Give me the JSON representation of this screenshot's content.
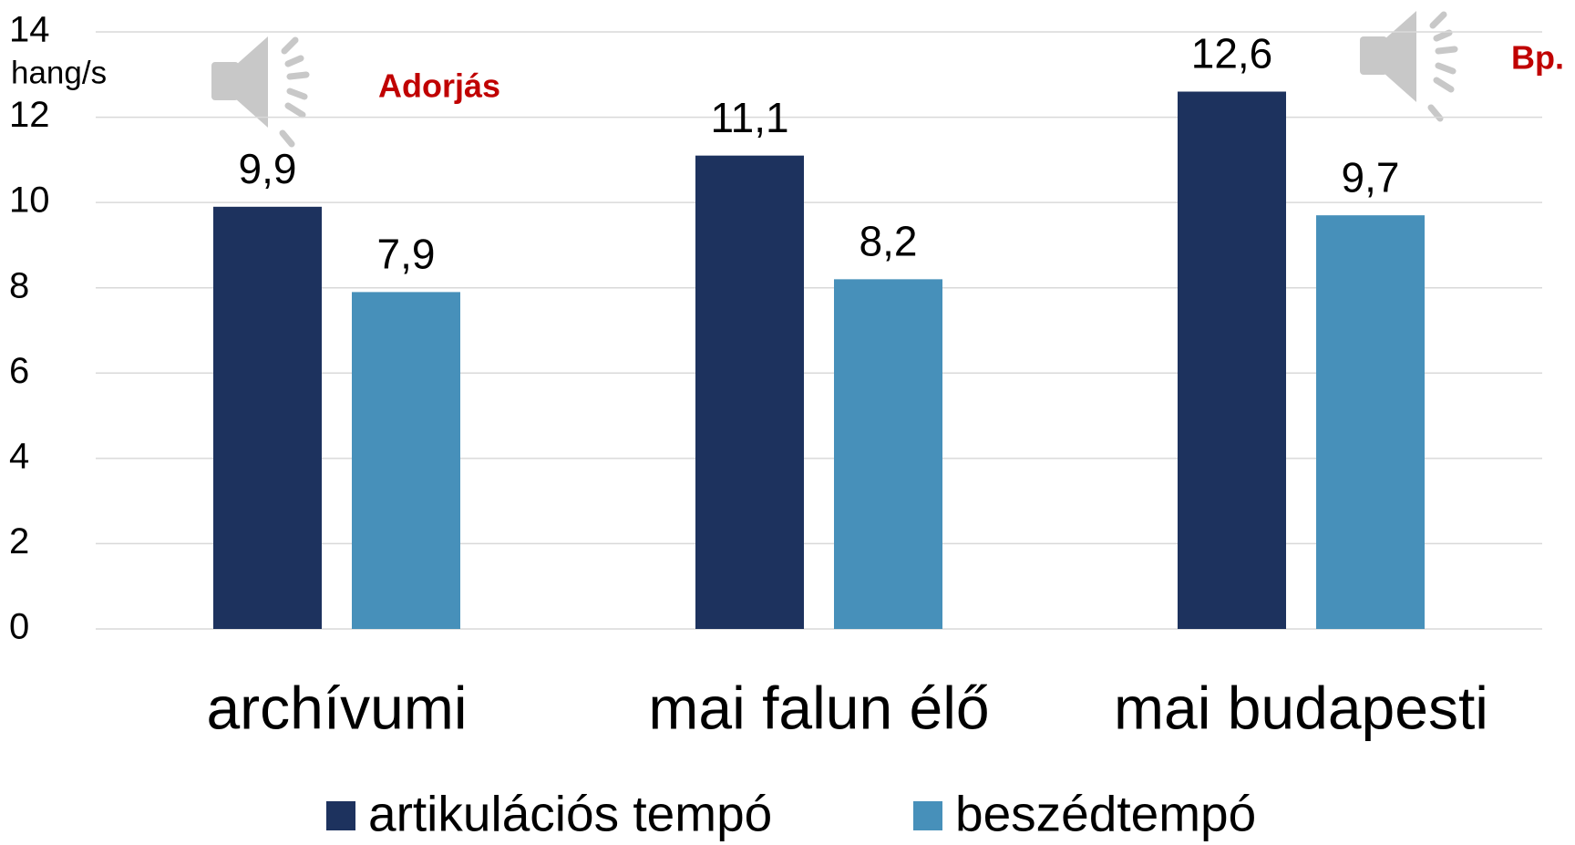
{
  "chart_data": {
    "type": "bar",
    "y_label": "hang/s",
    "annotations": [
      "Adorjás",
      "Bp."
    ],
    "categories": [
      "archívumi",
      "mai falun élő",
      "mai budapesti"
    ],
    "series": [
      {
        "name": "artikulációs tempó",
        "color": "#1d325e",
        "values": [
          9.9,
          11.1,
          12.6
        ],
        "value_labels": [
          "9,9",
          "11,1",
          "12,6"
        ]
      },
      {
        "name": "beszédtempó",
        "color": "#4790ba",
        "values": [
          7.9,
          8.2,
          9.7
        ],
        "value_labels": [
          "7,9",
          "8,2",
          "9,7"
        ]
      }
    ],
    "ylim": [
      0,
      14
    ],
    "yticks": [
      0,
      2,
      4,
      6,
      8,
      10,
      12,
      14
    ],
    "grid": true,
    "legend": "bottom"
  }
}
